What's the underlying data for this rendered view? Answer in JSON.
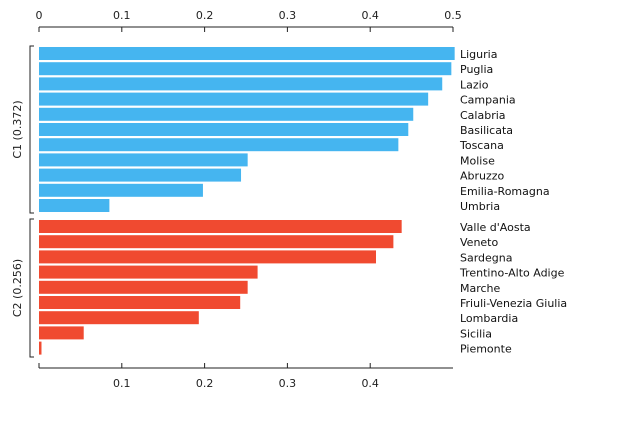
{
  "chart_data": {
    "type": "bar",
    "orientation": "horizontal",
    "xlim": [
      0,
      0.5
    ],
    "x_ticks_top": [
      "0",
      "0.1",
      "0.2",
      "0.3",
      "0.4",
      "0.5"
    ],
    "x_ticks_bottom": [
      "0.1",
      "0.2",
      "0.3",
      "0.4"
    ],
    "grid": false,
    "groups": [
      {
        "label": "C1 (0.372)",
        "color": "#45b5f0",
        "categories": [
          "Liguria",
          "Puglia",
          "Lazio",
          "Campania",
          "Calabria",
          "Basilicata",
          "Toscana",
          "Molise",
          "Abruzzo",
          "Emilia-Romagna",
          "Umbria"
        ],
        "values": [
          0.502,
          0.498,
          0.487,
          0.47,
          0.452,
          0.446,
          0.434,
          0.252,
          0.244,
          0.198,
          0.085
        ]
      },
      {
        "label": "C2 (0.256)",
        "color": "#f04a30",
        "categories": [
          "Valle d'Aosta",
          "Veneto",
          "Sardegna",
          "Trentino-Alto Adige",
          "Marche",
          "Friuli-Venezia Giulia",
          "Lombardia",
          "Sicilia",
          "Piemonte"
        ],
        "values": [
          0.438,
          0.428,
          0.407,
          0.264,
          0.252,
          0.243,
          0.193,
          0.054,
          0.003
        ]
      }
    ]
  }
}
